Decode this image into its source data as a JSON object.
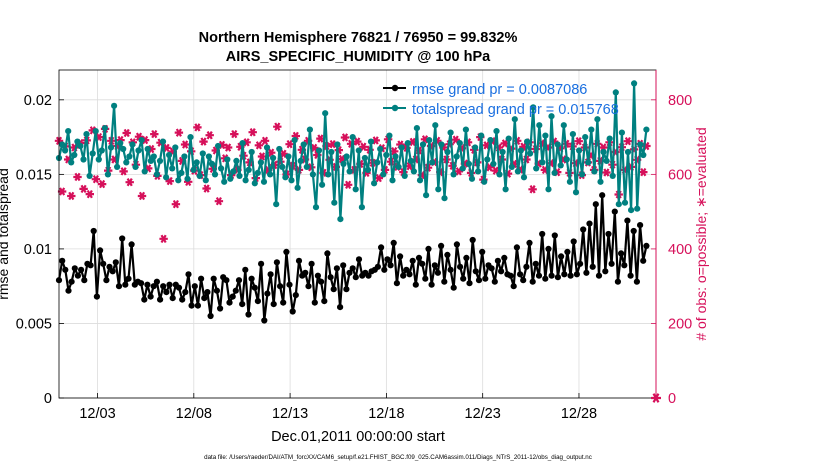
{
  "title_line1": "Northern Hemisphere 76821 / 76950 = 99.832%",
  "title_line2": "AIRS_SPECIFIC_HUMIDITY @ 100 hPa",
  "footer": "data file: /Users/raeder/DAI/ATM_forcXX/CAM6_setup/f.e21.FHIST_BGC.f09_025.CAM6assim.011/Diags_NTrS_2011-12/obs_diag_output.nc",
  "colors": {
    "rmse": "#000000",
    "spread": "#008080",
    "obs": "#d6105a",
    "legend_text": "#1a6fe0"
  },
  "chart_data": {
    "type": "line",
    "xlabel": "Dec.01,2011 00:00:00 start",
    "ylabel_left": "rmse and totalspread",
    "ylabel_right": "# of obs: o=possible; ∗=evaluated",
    "x_range": [
      1,
      32
    ],
    "x_ticks": [
      3,
      8,
      13,
      18,
      23,
      28
    ],
    "x_tick_labels": [
      "12/03",
      "12/08",
      "12/13",
      "12/18",
      "12/23",
      "12/28"
    ],
    "ylim_left": [
      0,
      0.022
    ],
    "y_ticks_left": [
      0,
      0.005,
      0.01,
      0.015,
      0.02
    ],
    "y_tick_labels_left": [
      "0",
      "0.005",
      "0.01",
      "0.015",
      "0.02"
    ],
    "ylim_right": [
      0,
      880
    ],
    "y_ticks_right": [
      0,
      200,
      400,
      600,
      800
    ],
    "y_tick_labels_right": [
      "0",
      "200",
      "400",
      "600",
      "800"
    ],
    "grid": true,
    "legend_position": "top-right",
    "series": [
      {
        "name": "rmse grand pr = 0.0087086",
        "axis": "left",
        "color": "#000000",
        "marker": "hexagram",
        "values": [
          0.0079,
          0.0092,
          0.0086,
          0.0072,
          0.0078,
          0.0087,
          0.0082,
          0.0086,
          0.0079,
          0.009,
          0.0089,
          0.0112,
          0.0068,
          0.0099,
          0.009,
          0.0079,
          0.0088,
          0.0085,
          0.0091,
          0.0075,
          0.0107,
          0.0076,
          0.008,
          0.0103,
          0.0076,
          0.0078,
          0.0077,
          0.0066,
          0.0076,
          0.0068,
          0.0075,
          0.0078,
          0.0066,
          0.0075,
          0.0071,
          0.0076,
          0.0067,
          0.0076,
          0.0074,
          0.0066,
          0.0071,
          0.0083,
          0.0062,
          0.0075,
          0.0062,
          0.008,
          0.0067,
          0.0071,
          0.0055,
          0.008,
          0.0072,
          0.006,
          0.0081,
          0.0079,
          0.0064,
          0.0068,
          0.0072,
          0.0079,
          0.0063,
          0.0086,
          0.0056,
          0.008,
          0.0074,
          0.0065,
          0.009,
          0.0052,
          0.007,
          0.0083,
          0.0063,
          0.0091,
          0.0075,
          0.0064,
          0.0098,
          0.0076,
          0.0058,
          0.0069,
          0.0092,
          0.0082,
          0.0084,
          0.0075,
          0.009,
          0.0064,
          0.0082,
          0.0078,
          0.0065,
          0.0097,
          0.0081,
          0.0073,
          0.0087,
          0.0061,
          0.0089,
          0.0073,
          0.0084,
          0.0087,
          0.0081,
          0.0093,
          0.0082,
          0.0084,
          0.0082,
          0.0085,
          0.0086,
          0.0088,
          0.0101,
          0.0086,
          0.0093,
          0.0089,
          0.0104,
          0.0077,
          0.0095,
          0.0082,
          0.0086,
          0.0083,
          0.0092,
          0.0076,
          0.0094,
          0.009,
          0.008,
          0.01,
          0.0076,
          0.0089,
          0.0084,
          0.0102,
          0.0078,
          0.0096,
          0.0086,
          0.0074,
          0.0103,
          0.0088,
          0.008,
          0.0094,
          0.0077,
          0.0106,
          0.0085,
          0.0079,
          0.0098,
          0.008,
          0.0089,
          0.0087,
          0.0078,
          0.0092,
          0.0085,
          0.0094,
          0.0083,
          0.0082,
          0.0075,
          0.0101,
          0.0083,
          0.0079,
          0.0088,
          0.0104,
          0.0078,
          0.009,
          0.0082,
          0.011,
          0.008,
          0.01,
          0.0082,
          0.0109,
          0.0081,
          0.0095,
          0.0083,
          0.0098,
          0.0082,
          0.0105,
          0.0083,
          0.009,
          0.0113,
          0.0084,
          0.0117,
          0.0088,
          0.013,
          0.0082,
          0.0136,
          0.0085,
          0.011,
          0.009,
          0.0125,
          0.0078,
          0.0097,
          0.0089,
          0.0119,
          0.0082,
          0.0112,
          0.0078,
          0.0116,
          0.0092,
          0.0102
        ]
      },
      {
        "name": "totalspread grand pr = 0.015768",
        "axis": "left",
        "color": "#008080",
        "marker": "circle",
        "values": [
          0.0161,
          0.017,
          0.0166,
          0.0179,
          0.0158,
          0.0163,
          0.0172,
          0.0169,
          0.016,
          0.0177,
          0.0149,
          0.0164,
          0.0179,
          0.016,
          0.0166,
          0.0181,
          0.015,
          0.0168,
          0.0196,
          0.0155,
          0.0171,
          0.0167,
          0.0158,
          0.0162,
          0.017,
          0.0155,
          0.0166,
          0.0173,
          0.0152,
          0.0167,
          0.0159,
          0.0162,
          0.015,
          0.0159,
          0.0172,
          0.0148,
          0.0163,
          0.0154,
          0.0168,
          0.0146,
          0.0151,
          0.0162,
          0.0147,
          0.0175,
          0.0153,
          0.0158,
          0.0149,
          0.0164,
          0.0146,
          0.0162,
          0.0157,
          0.015,
          0.0169,
          0.0154,
          0.0145,
          0.016,
          0.0147,
          0.0152,
          0.0159,
          0.0149,
          0.0171,
          0.0146,
          0.0153,
          0.0165,
          0.0144,
          0.0151,
          0.0158,
          0.0145,
          0.0168,
          0.015,
          0.0161,
          0.013,
          0.0167,
          0.0155,
          0.0148,
          0.0162,
          0.0146,
          0.0173,
          0.0141,
          0.0159,
          0.017,
          0.0155,
          0.018,
          0.015,
          0.0128,
          0.0166,
          0.0143,
          0.0191,
          0.015,
          0.0165,
          0.0131,
          0.017,
          0.012,
          0.0157,
          0.0162,
          0.0152,
          0.0175,
          0.014,
          0.0166,
          0.0128,
          0.0161,
          0.0153,
          0.0172,
          0.0144,
          0.0158,
          0.0167,
          0.015,
          0.0163,
          0.0176,
          0.0146,
          0.0162,
          0.0155,
          0.0168,
          0.0149,
          0.0171,
          0.0159,
          0.0152,
          0.0181,
          0.0146,
          0.017,
          0.0136,
          0.0173,
          0.0158,
          0.0183,
          0.014,
          0.017,
          0.0134,
          0.0165,
          0.0178,
          0.015,
          0.0162,
          0.0171,
          0.0154,
          0.018,
          0.0157,
          0.0147,
          0.0168,
          0.0152,
          0.0176,
          0.0145,
          0.016,
          0.0173,
          0.0157,
          0.0179,
          0.015,
          0.0165,
          0.014,
          0.0174,
          0.0155,
          0.0187,
          0.0152,
          0.0166,
          0.0148,
          0.0172,
          0.0164,
          0.0195,
          0.0154,
          0.0183,
          0.0158,
          0.0176,
          0.014,
          0.0189,
          0.0151,
          0.017,
          0.0156,
          0.0183,
          0.016,
          0.0145,
          0.0177,
          0.0138,
          0.0166,
          0.015,
          0.0175,
          0.0158,
          0.018,
          0.0152,
          0.0187,
          0.0145,
          0.0165,
          0.0159,
          0.0174,
          0.0149,
          0.0205,
          0.013,
          0.0178,
          0.0131,
          0.0165,
          0.0126,
          0.0211,
          0.0127,
          0.017,
          0.0163,
          0.018
        ]
      },
      {
        "name": "obs evaluated",
        "axis": "right",
        "color": "#d6105a",
        "marker": "star",
        "values": [
          690,
          554,
          675,
          640,
          542,
          672,
          593,
          684,
          561,
          691,
          547,
          718,
          587,
          700,
          574,
          722,
          610,
          690,
          640,
          676,
          692,
          608,
          711,
          579,
          686,
          626,
          701,
          542,
          692,
          616,
          668,
          708,
          596,
          685,
          427,
          671,
          582,
          661,
          520,
          712,
          636,
          680,
          580,
          662,
          610,
          726,
          598,
          688,
          562,
          705,
          615,
          664,
          528,
          679,
          643,
          672,
          598,
          708,
          612,
          674,
          650,
          686,
          632,
          713,
          590,
          678,
          648,
          690,
          612,
          658,
          625,
          728,
          634,
          655,
          600,
          681,
          623,
          703,
          612,
          666,
          640,
          690,
          619,
          671,
          652,
          696,
          604,
          676,
          639,
          681,
          620,
          665,
          641,
          699,
          572,
          682,
          612,
          688,
          628,
          674,
          604,
          666,
          631,
          691,
          590,
          670,
          612,
          694,
          634,
          662,
          620,
          680,
          606,
          671,
          622,
          687,
          640,
          664,
          598,
          694,
          618,
          676,
          633,
          690,
          606,
          672,
          640,
          681,
          623,
          693,
          608,
          670,
          629,
          686,
          604,
          666,
          632,
          700,
          586,
          678,
          619,
          689,
          610,
          672,
          640,
          683,
          602,
          669,
          628,
          690,
          613,
          674,
          640,
          686,
          560,
          668,
          629,
          683,
          612,
          672,
          630,
          688,
          606,
          670,
          640,
          682,
          604,
          675,
          630,
          689,
          598,
          672,
          632,
          651,
          612,
          682,
          636,
          672,
          605,
          686,
          626,
          660,
          546,
          673,
          612,
          689,
          620,
          667,
          639,
          682,
          606,
          676
        ]
      }
    ]
  }
}
